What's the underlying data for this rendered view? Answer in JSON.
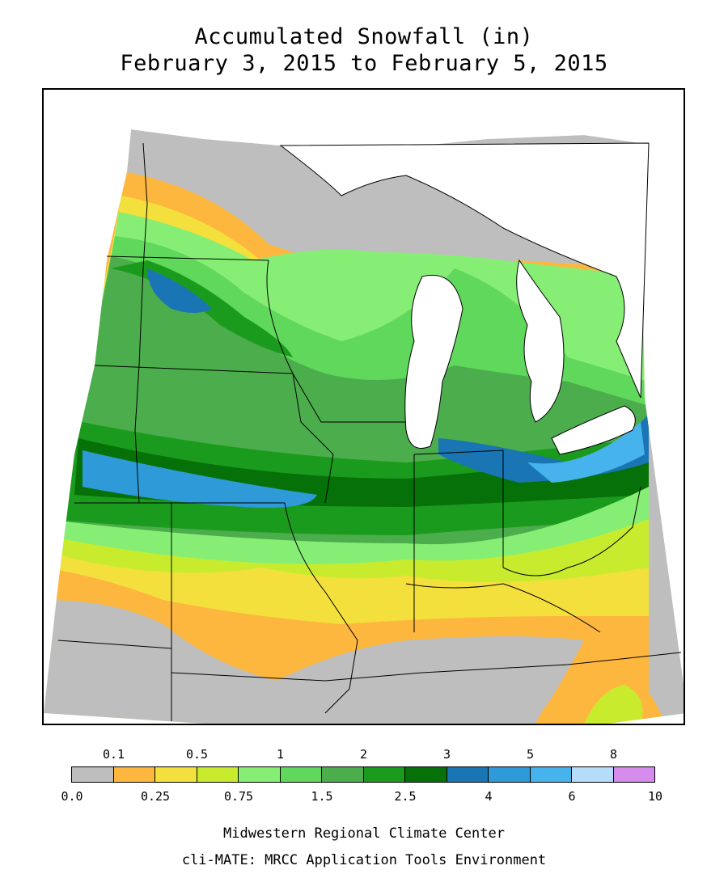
{
  "map": {
    "title_line1": "Accumulated Snowfall (in)",
    "title_line2": "February 3, 2015 to February 5, 2015",
    "credit_line1": "Midwestern Regional Climate Center",
    "credit_line2": "cli-MATE: MRCC Application Tools Environment"
  },
  "legend": {
    "top_labels": [
      "0.1",
      "0.5",
      "1",
      "2",
      "3",
      "5",
      "8"
    ],
    "bottom_labels": [
      "0.0",
      "0.25",
      "0.75",
      "1.5",
      "2.5",
      "4",
      "6",
      "10"
    ],
    "colors": [
      "#bebebe",
      "#fdb73f",
      "#f4e03d",
      "#c8ec2d",
      "#86ee74",
      "#5fd85b",
      "#4cad4c",
      "#1b9b1d",
      "#067108",
      "#1975b3",
      "#2e9ad8",
      "#47b3ec",
      "#b6dcfa",
      "#d68ced"
    ]
  },
  "colors": {
    "water": "#ffffff",
    "outline": "#000000"
  }
}
